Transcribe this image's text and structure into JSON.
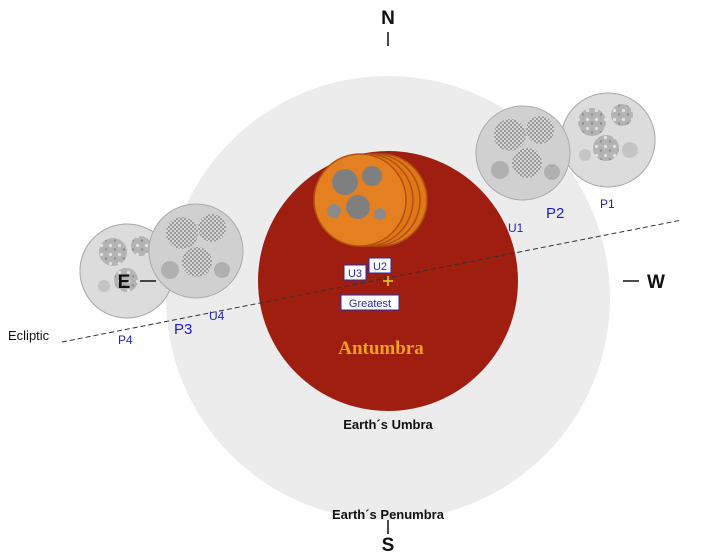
{
  "directions": {
    "north": "N",
    "south": "S",
    "east": "E",
    "west": "W"
  },
  "labels": {
    "ecliptic": "Ecliptic",
    "antumbra": "Antumbra",
    "umbra": "Earth´s Umbra",
    "penumbra": "Earth´s Penumbra",
    "greatest": "Greatest"
  },
  "contacts": {
    "p1": "P1",
    "p2": "P2",
    "p3": "P3",
    "p4": "P4",
    "u1": "U1",
    "u2": "U2",
    "u3": "U3",
    "u4": "U4"
  },
  "colors": {
    "penumbra": "#ececec",
    "umbra": "#a01e10",
    "eclipsed_moon": "#e07818",
    "moon_gray": "#a8a8a8",
    "contact_label": "#2323b8",
    "antumbra_label": "#f2a020",
    "greatest_marker": "#f0d020"
  }
}
